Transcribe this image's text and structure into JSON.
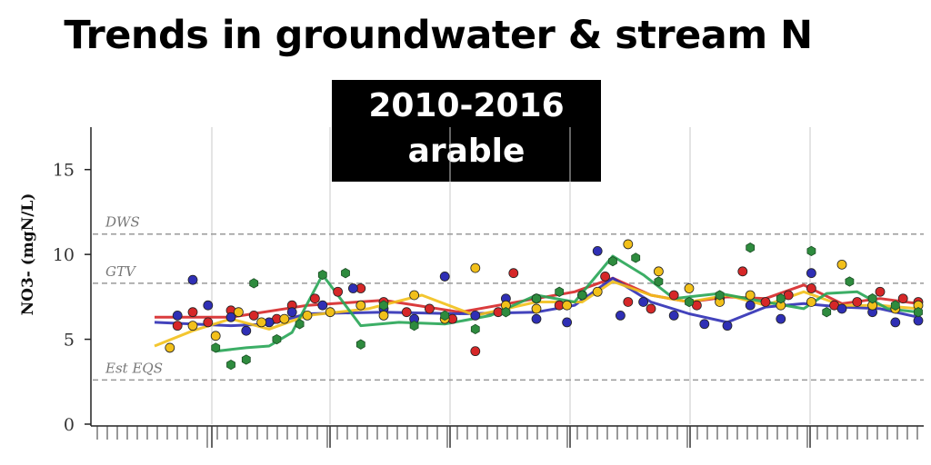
{
  "header": {
    "title": "Trends in groundwater & stream N",
    "period": "2010-2016",
    "landuse": "arable"
  },
  "chart_data": {
    "type": "scatter",
    "ylabel": "NO3- (mgN/L)",
    "ylim": [
      0,
      17.5
    ],
    "yticks": [
      0,
      5,
      10,
      15
    ],
    "grid": "vertical",
    "reference_lines": [
      {
        "label": "DWS",
        "value": 11.2
      },
      {
        "label": "GTV",
        "value": 8.3
      },
      {
        "label": "Est EQS",
        "value": 2.6
      }
    ],
    "series": [
      {
        "color": "#d62728",
        "points": [
          [
            0.03,
            5.8
          ],
          [
            0.05,
            6.6
          ],
          [
            0.07,
            6.0
          ],
          [
            0.1,
            6.7
          ],
          [
            0.13,
            6.4
          ],
          [
            0.16,
            6.2
          ],
          [
            0.18,
            7.0
          ],
          [
            0.21,
            7.4
          ],
          [
            0.24,
            7.8
          ],
          [
            0.27,
            8.0
          ],
          [
            0.3,
            7.2
          ],
          [
            0.33,
            6.6
          ],
          [
            0.36,
            6.8
          ],
          [
            0.39,
            6.2
          ],
          [
            0.42,
            4.3
          ],
          [
            0.45,
            6.6
          ],
          [
            0.47,
            8.9
          ],
          [
            0.5,
            7.4
          ],
          [
            0.53,
            7.0
          ],
          [
            0.56,
            7.6
          ],
          [
            0.59,
            8.7
          ],
          [
            0.62,
            7.2
          ],
          [
            0.65,
            6.8
          ],
          [
            0.68,
            7.6
          ],
          [
            0.71,
            7.0
          ],
          [
            0.74,
            7.4
          ],
          [
            0.77,
            9.0
          ],
          [
            0.8,
            7.2
          ],
          [
            0.83,
            7.6
          ],
          [
            0.86,
            8.0
          ],
          [
            0.89,
            7.0
          ],
          [
            0.92,
            7.2
          ],
          [
            0.95,
            7.8
          ],
          [
            0.98,
            7.4
          ],
          [
            1.0,
            7.2
          ]
        ],
        "trend": [
          [
            0.0,
            6.3
          ],
          [
            0.1,
            6.3
          ],
          [
            0.2,
            7.0
          ],
          [
            0.3,
            7.3
          ],
          [
            0.4,
            6.6
          ],
          [
            0.5,
            7.4
          ],
          [
            0.55,
            7.8
          ],
          [
            0.6,
            8.6
          ],
          [
            0.65,
            7.6
          ],
          [
            0.7,
            7.2
          ],
          [
            0.75,
            7.5
          ],
          [
            0.8,
            7.4
          ],
          [
            0.85,
            8.2
          ],
          [
            0.9,
            7.1
          ],
          [
            0.95,
            7.4
          ],
          [
            1.0,
            7.1
          ]
        ]
      },
      {
        "color": "#2f2fb5",
        "points": [
          [
            0.03,
            6.4
          ],
          [
            0.05,
            8.5
          ],
          [
            0.07,
            7.0
          ],
          [
            0.1,
            6.3
          ],
          [
            0.12,
            5.5
          ],
          [
            0.15,
            6.0
          ],
          [
            0.18,
            6.6
          ],
          [
            0.22,
            7.0
          ],
          [
            0.26,
            8.0
          ],
          [
            0.3,
            6.8
          ],
          [
            0.34,
            6.2
          ],
          [
            0.38,
            8.7
          ],
          [
            0.42,
            6.4
          ],
          [
            0.46,
            7.4
          ],
          [
            0.5,
            6.2
          ],
          [
            0.54,
            6.0
          ],
          [
            0.58,
            10.2
          ],
          [
            0.61,
            6.4
          ],
          [
            0.64,
            7.2
          ],
          [
            0.68,
            6.4
          ],
          [
            0.72,
            5.9
          ],
          [
            0.75,
            5.8
          ],
          [
            0.78,
            7.0
          ],
          [
            0.82,
            6.2
          ],
          [
            0.86,
            8.9
          ],
          [
            0.9,
            6.8
          ],
          [
            0.94,
            6.6
          ],
          [
            0.97,
            6.0
          ],
          [
            1.0,
            6.1
          ]
        ],
        "trend": [
          [
            0.0,
            6.0
          ],
          [
            0.1,
            5.8
          ],
          [
            0.15,
            5.9
          ],
          [
            0.2,
            6.5
          ],
          [
            0.3,
            6.6
          ],
          [
            0.4,
            6.5
          ],
          [
            0.5,
            6.6
          ],
          [
            0.55,
            7.0
          ],
          [
            0.6,
            8.6
          ],
          [
            0.65,
            7.2
          ],
          [
            0.7,
            6.5
          ],
          [
            0.75,
            6.0
          ],
          [
            0.8,
            6.9
          ],
          [
            0.85,
            7.1
          ],
          [
            0.9,
            6.9
          ],
          [
            0.95,
            6.8
          ],
          [
            1.0,
            6.3
          ]
        ]
      },
      {
        "color": "#f2c01a",
        "points": [
          [
            0.02,
            4.5
          ],
          [
            0.05,
            5.8
          ],
          [
            0.08,
            5.2
          ],
          [
            0.11,
            6.6
          ],
          [
            0.14,
            6.0
          ],
          [
            0.17,
            6.2
          ],
          [
            0.2,
            6.4
          ],
          [
            0.23,
            6.6
          ],
          [
            0.27,
            7.0
          ],
          [
            0.3,
            6.4
          ],
          [
            0.34,
            7.6
          ],
          [
            0.38,
            6.2
          ],
          [
            0.42,
            9.2
          ],
          [
            0.46,
            7.0
          ],
          [
            0.5,
            6.8
          ],
          [
            0.54,
            7.0
          ],
          [
            0.58,
            7.8
          ],
          [
            0.62,
            10.6
          ],
          [
            0.66,
            9.0
          ],
          [
            0.7,
            8.0
          ],
          [
            0.74,
            7.2
          ],
          [
            0.78,
            7.6
          ],
          [
            0.82,
            7.0
          ],
          [
            0.86,
            7.2
          ],
          [
            0.9,
            9.4
          ],
          [
            0.94,
            7.0
          ],
          [
            0.97,
            6.8
          ],
          [
            1.0,
            7.0
          ]
        ],
        "trend": [
          [
            0.0,
            4.6
          ],
          [
            0.05,
            5.5
          ],
          [
            0.1,
            6.2
          ],
          [
            0.15,
            5.6
          ],
          [
            0.2,
            6.4
          ],
          [
            0.28,
            6.8
          ],
          [
            0.35,
            7.6
          ],
          [
            0.42,
            6.4
          ],
          [
            0.5,
            7.2
          ],
          [
            0.56,
            7.2
          ],
          [
            0.6,
            8.4
          ],
          [
            0.65,
            7.6
          ],
          [
            0.7,
            7.2
          ],
          [
            0.75,
            7.6
          ],
          [
            0.8,
            7.0
          ],
          [
            0.85,
            7.8
          ],
          [
            0.9,
            7.0
          ],
          [
            0.95,
            7.0
          ],
          [
            1.0,
            6.8
          ]
        ]
      },
      {
        "color": "#2e8b3e",
        "points": [
          [
            0.08,
            4.5
          ],
          [
            0.1,
            3.5
          ],
          [
            0.12,
            3.8
          ],
          [
            0.13,
            8.3
          ],
          [
            0.16,
            5.0
          ],
          [
            0.19,
            5.9
          ],
          [
            0.22,
            8.8
          ],
          [
            0.25,
            8.9
          ],
          [
            0.27,
            4.7
          ],
          [
            0.3,
            7.0
          ],
          [
            0.34,
            5.8
          ],
          [
            0.38,
            6.4
          ],
          [
            0.42,
            5.6
          ],
          [
            0.46,
            6.6
          ],
          [
            0.5,
            7.4
          ],
          [
            0.53,
            7.8
          ],
          [
            0.56,
            7.6
          ],
          [
            0.6,
            9.6
          ],
          [
            0.63,
            9.8
          ],
          [
            0.66,
            8.4
          ],
          [
            0.7,
            7.2
          ],
          [
            0.74,
            7.6
          ],
          [
            0.78,
            10.4
          ],
          [
            0.82,
            7.4
          ],
          [
            0.86,
            10.2
          ],
          [
            0.88,
            6.6
          ],
          [
            0.91,
            8.4
          ],
          [
            0.94,
            7.4
          ],
          [
            0.97,
            7.0
          ],
          [
            1.0,
            6.6
          ]
        ],
        "trend": [
          [
            0.08,
            4.3
          ],
          [
            0.12,
            4.5
          ],
          [
            0.15,
            4.6
          ],
          [
            0.18,
            5.4
          ],
          [
            0.22,
            8.8
          ],
          [
            0.27,
            5.8
          ],
          [
            0.32,
            6.0
          ],
          [
            0.38,
            5.9
          ],
          [
            0.44,
            6.4
          ],
          [
            0.5,
            7.6
          ],
          [
            0.55,
            7.2
          ],
          [
            0.6,
            9.9
          ],
          [
            0.64,
            8.8
          ],
          [
            0.68,
            7.4
          ],
          [
            0.74,
            7.7
          ],
          [
            0.8,
            7.2
          ],
          [
            0.85,
            6.8
          ],
          [
            0.88,
            7.7
          ],
          [
            0.92,
            7.8
          ],
          [
            0.96,
            6.8
          ],
          [
            1.0,
            6.6
          ]
        ]
      }
    ]
  }
}
